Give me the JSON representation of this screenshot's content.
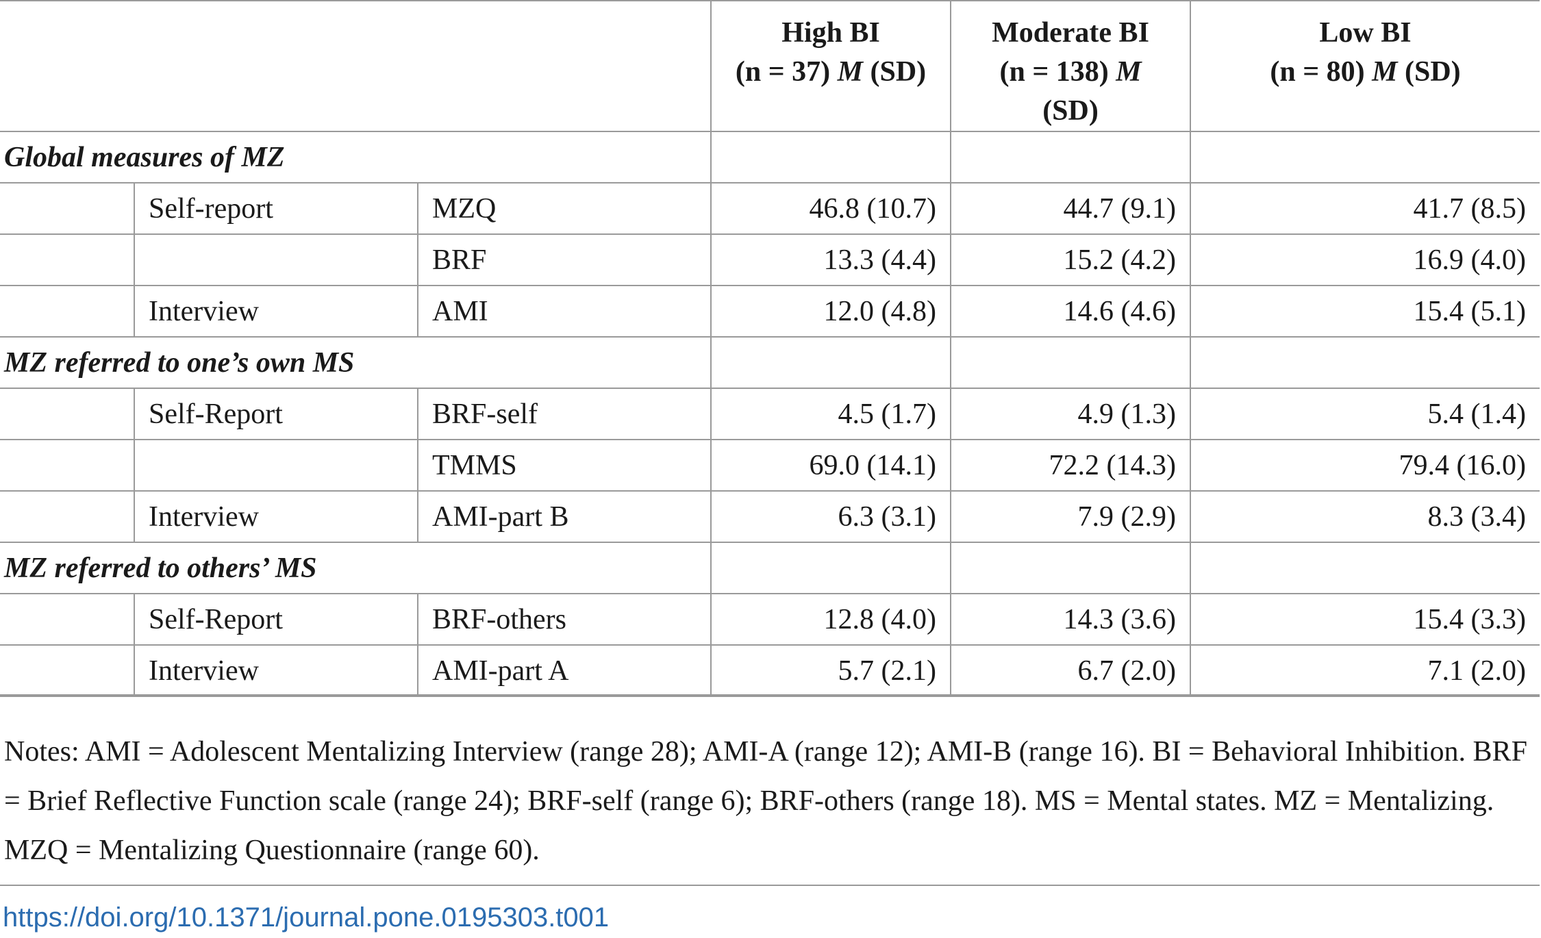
{
  "headers": {
    "high_bi": {
      "line1": "High BI",
      "n": "(n = 37)",
      "stat_m": "M",
      "stat_sd": "(SD)"
    },
    "moderate_bi": {
      "line1": "Moderate BI",
      "n": "(n = 138)",
      "stat_m": "M",
      "stat_sd": "(SD)"
    },
    "low_bi": {
      "line1": "Low BI",
      "n": "(n = 80)",
      "stat_m": "M",
      "stat_sd": "(SD)"
    }
  },
  "sections": [
    {
      "title": "Global measures of MZ",
      "rows": [
        {
          "type": "Self-report",
          "measure": "MZQ",
          "high": "46.8 (10.7)",
          "moderate": "44.7 (9.1)",
          "low": "41.7 (8.5)"
        },
        {
          "type": "",
          "measure": "BRF",
          "high": "13.3 (4.4)",
          "moderate": "15.2 (4.2)",
          "low": "16.9 (4.0)"
        },
        {
          "type": "Interview",
          "measure": "AMI",
          "high": "12.0 (4.8)",
          "moderate": "14.6 (4.6)",
          "low": "15.4 (5.1)"
        }
      ]
    },
    {
      "title": "MZ referred to one’s own MS",
      "rows": [
        {
          "type": "Self-Report",
          "measure": "BRF-self",
          "high": "4.5 (1.7)",
          "moderate": "4.9 (1.3)",
          "low": "5.4 (1.4)"
        },
        {
          "type": "",
          "measure": "TMMS",
          "high": "69.0 (14.1)",
          "moderate": "72.2 (14.3)",
          "low": "79.4 (16.0)"
        },
        {
          "type": "Interview",
          "measure": "AMI-part B",
          "high": "6.3 (3.1)",
          "moderate": "7.9 (2.9)",
          "low": "8.3 (3.4)"
        }
      ]
    },
    {
      "title": "MZ referred to others’ MS",
      "rows": [
        {
          "type": "Self-Report",
          "measure": "BRF-others",
          "high": "12.8 (4.0)",
          "moderate": "14.3 (3.6)",
          "low": "15.4 (3.3)"
        },
        {
          "type": "Interview",
          "measure": "AMI-part A",
          "high": "5.7 (2.1)",
          "moderate": "6.7 (2.0)",
          "low": "7.1 (2.0)"
        }
      ]
    }
  ],
  "notes": "Notes: AMI = Adolescent Mentalizing Interview (range 28); AMI-A (range 12); AMI-B (range 16). BI = Behavioral Inhibition. BRF = Brief Reflective Function scale (range 24); BRF-self (range 6); BRF-others (range 18). MS = Mental states. MZ = Mentalizing. MZQ = Mentalizing Questionnaire (range 60).",
  "doi": "https://doi.org/10.1371/journal.pone.0195303.t001"
}
